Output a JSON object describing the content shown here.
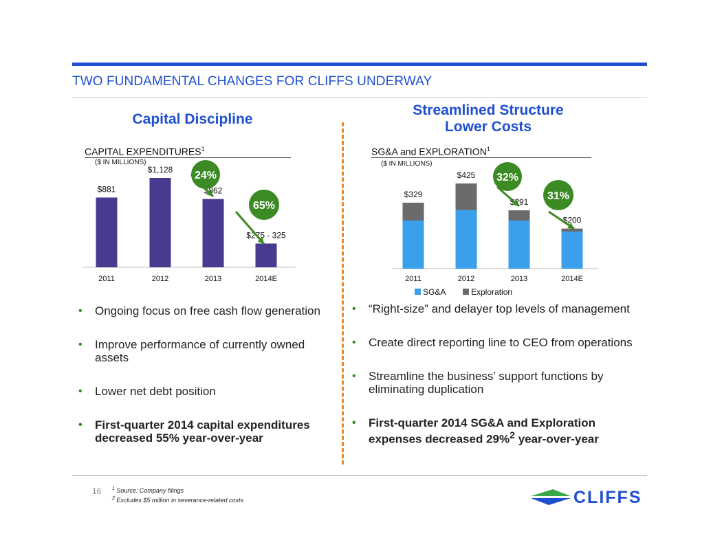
{
  "header": {
    "title": "TWO FUNDAMENTAL CHANGES FOR CLIFFS UNDERWAY"
  },
  "left": {
    "heading": "Capital Discipline",
    "chart_title": "CAPITAL EXPENDITURES",
    "chart_title_sup": "1",
    "units": "($ IN MILLIONS)",
    "bullets": [
      "Ongoing focus on free cash flow generation",
      "Improve performance of currently owned assets",
      "Lower net debt position",
      "First-quarter 2014 capital expenditures decreased 55% year-over-year"
    ]
  },
  "right": {
    "heading_line1": "Streamlined Structure",
    "heading_line2": "Lower Costs",
    "chart_title": "SG&A and EXPLORATION",
    "chart_title_sup": "1",
    "units": "($ IN MILLIONS)",
    "bullets": [
      "“Right-size” and delayer top levels  of management",
      "Create direct reporting line to CEO from operations",
      "Streamline the business’ support functions by eliminating duplication"
    ],
    "bold_bullet_pre": "First-quarter 2014 SG&A and Exploration expenses decreased 29%",
    "bold_bullet_sup": "2",
    "bold_bullet_post": " year-over-year"
  },
  "chart_data": [
    {
      "type": "bar",
      "title": "CAPITAL EXPENDITURES",
      "units": "($ IN MILLIONS)",
      "categories": [
        "2011",
        "2012",
        "2013",
        "2014E"
      ],
      "values": [
        881,
        1128,
        862,
        300
      ],
      "data_labels": [
        "$881",
        "$1,128",
        "$862",
        "$275 - 325"
      ],
      "color": "#483a8f",
      "annotations": [
        {
          "label": "24%",
          "from": "2012",
          "to": "2013"
        },
        {
          "label": "65%",
          "from": "2013",
          "to": "2014E"
        }
      ]
    },
    {
      "type": "bar",
      "stacked": true,
      "title": "SG&A and EXPLORATION",
      "units": "($ IN MILLIONS)",
      "categories": [
        "2011",
        "2012",
        "2013",
        "2014E"
      ],
      "series": [
        {
          "name": "SG&A",
          "values": [
            240,
            292,
            240,
            185
          ],
          "color": "#3aa0ec"
        },
        {
          "name": "Exploration",
          "values": [
            89,
            133,
            51,
            15
          ],
          "color": "#6b6b6b"
        }
      ],
      "totals": [
        329,
        425,
        291,
        200
      ],
      "data_labels": [
        "$329",
        "$425",
        "$291",
        "$200"
      ],
      "legend": "bottom",
      "annotations": [
        {
          "label": "32%",
          "from": "2012",
          "to": "2013"
        },
        {
          "label": "31%",
          "from": "2013",
          "to": "2014E"
        }
      ]
    }
  ],
  "footer": {
    "page_number": "16",
    "footnote1_sup": "1",
    "footnote1": " Source: Company filings",
    "footnote2_sup": "2",
    "footnote2": " Excludes $5 million in severance-related costs",
    "logo_text": "CLIFFS"
  }
}
